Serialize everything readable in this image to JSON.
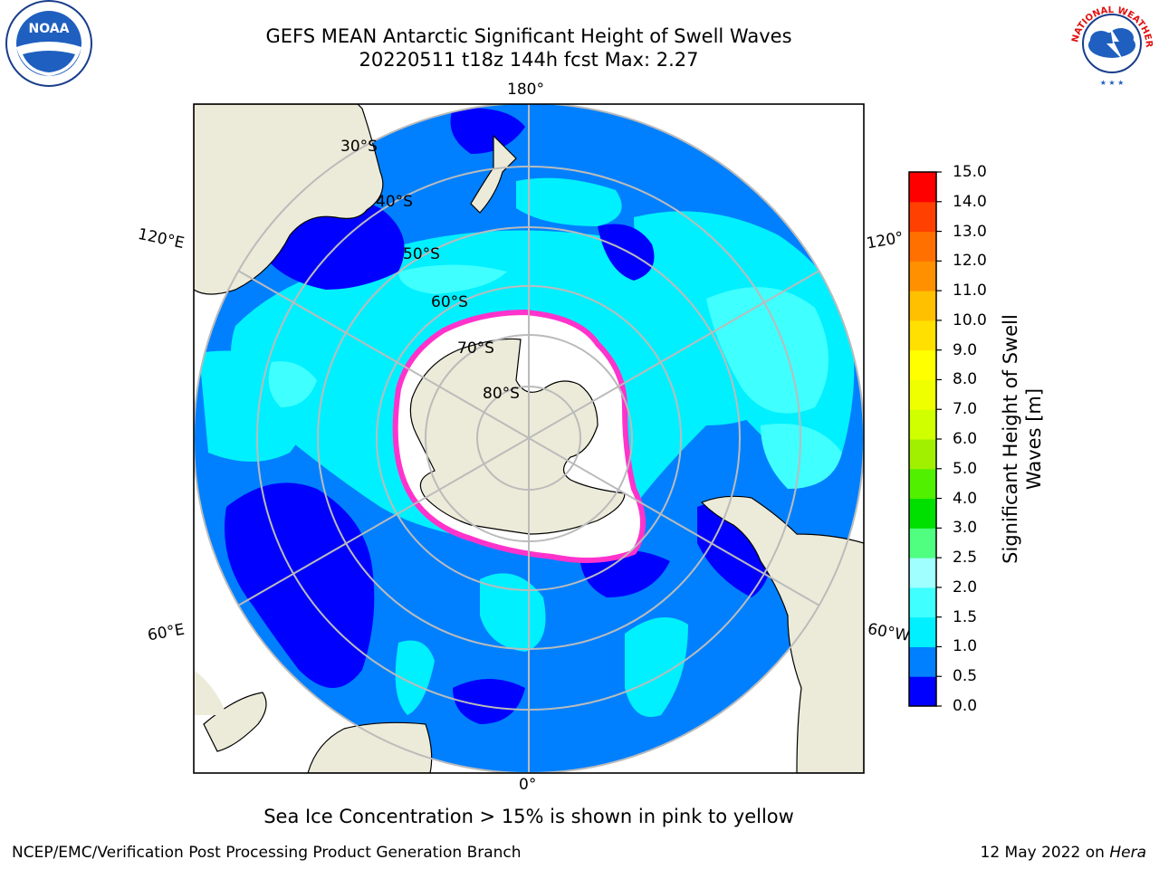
{
  "header": {
    "title_line1": "GEFS MEAN Antarctic Significant Height of Swell Waves",
    "title_line2": "20220511 t18z 144h fcst   Max: 2.27"
  },
  "map": {
    "projection": "south-polar-stereographic",
    "longitude_labels": {
      "top": "180°",
      "bottom": "0°",
      "upper_left": "120°E",
      "lower_left": "60°E",
      "upper_right": "120°",
      "lower_right": "60°W"
    },
    "latitude_labels": [
      "30°S",
      "40°S",
      "50°S",
      "60°S",
      "70°S",
      "80°S"
    ],
    "colors": {
      "land": "#ecebd9",
      "ice": "#ffffff",
      "ice_edge": "#ff33cc",
      "grid": "#bbbbbb",
      "coast": "#000000"
    }
  },
  "colorbar": {
    "title": "Significant Height of Swell Waves [m]",
    "ticks": [
      "0.0",
      "0.5",
      "1.0",
      "1.5",
      "2.0",
      "2.5",
      "3.0",
      "4.0",
      "5.0",
      "6.0",
      "7.0",
      "8.0",
      "9.0",
      "10.0",
      "11.0",
      "12.0",
      "13.0",
      "14.0",
      "15.0"
    ],
    "colors": [
      "#0000ff",
      "#0080ff",
      "#00f0ff",
      "#40ffff",
      "#a0ffff",
      "#50ff80",
      "#00e000",
      "#50f000",
      "#a0f000",
      "#d0ff00",
      "#f0ff00",
      "#ffff00",
      "#ffe000",
      "#ffc000",
      "#ff9000",
      "#ff7000",
      "#ff4000",
      "#ff0000"
    ]
  },
  "logos": {
    "noaa": "NOAA",
    "nws_text": "NATIONAL WEATHER SERVICE"
  },
  "note": "Sea Ice Concentration > 15% is shown in pink to yellow",
  "footer": {
    "left": "NCEP/EMC/Verification Post Processing Product Generation Branch",
    "right_date": "12 May 2022 on ",
    "right_host": "Hera"
  }
}
